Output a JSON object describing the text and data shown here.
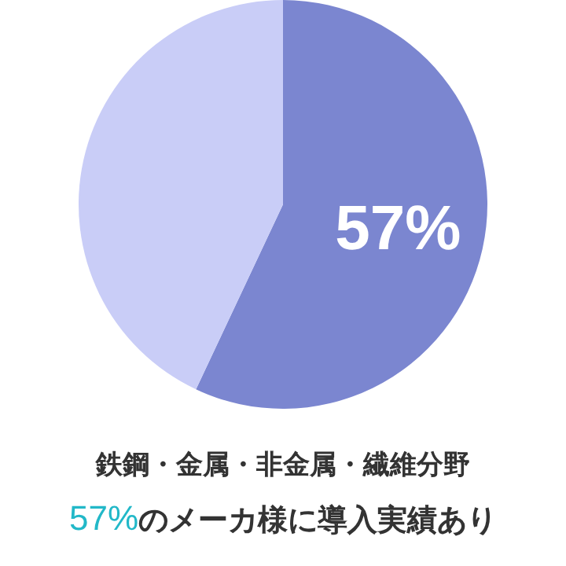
{
  "chart_data": {
    "type": "pie",
    "title": "鉄鋼・金属・非金属・繊維分野",
    "subtitle": "57%のメーカ様に導入実績あり",
    "categories": [
      null,
      null
    ],
    "values": [
      57,
      43
    ],
    "colors": [
      "#7b86d0",
      "#c9cdf7"
    ],
    "value_labels": [
      "57%",
      null
    ]
  }
}
